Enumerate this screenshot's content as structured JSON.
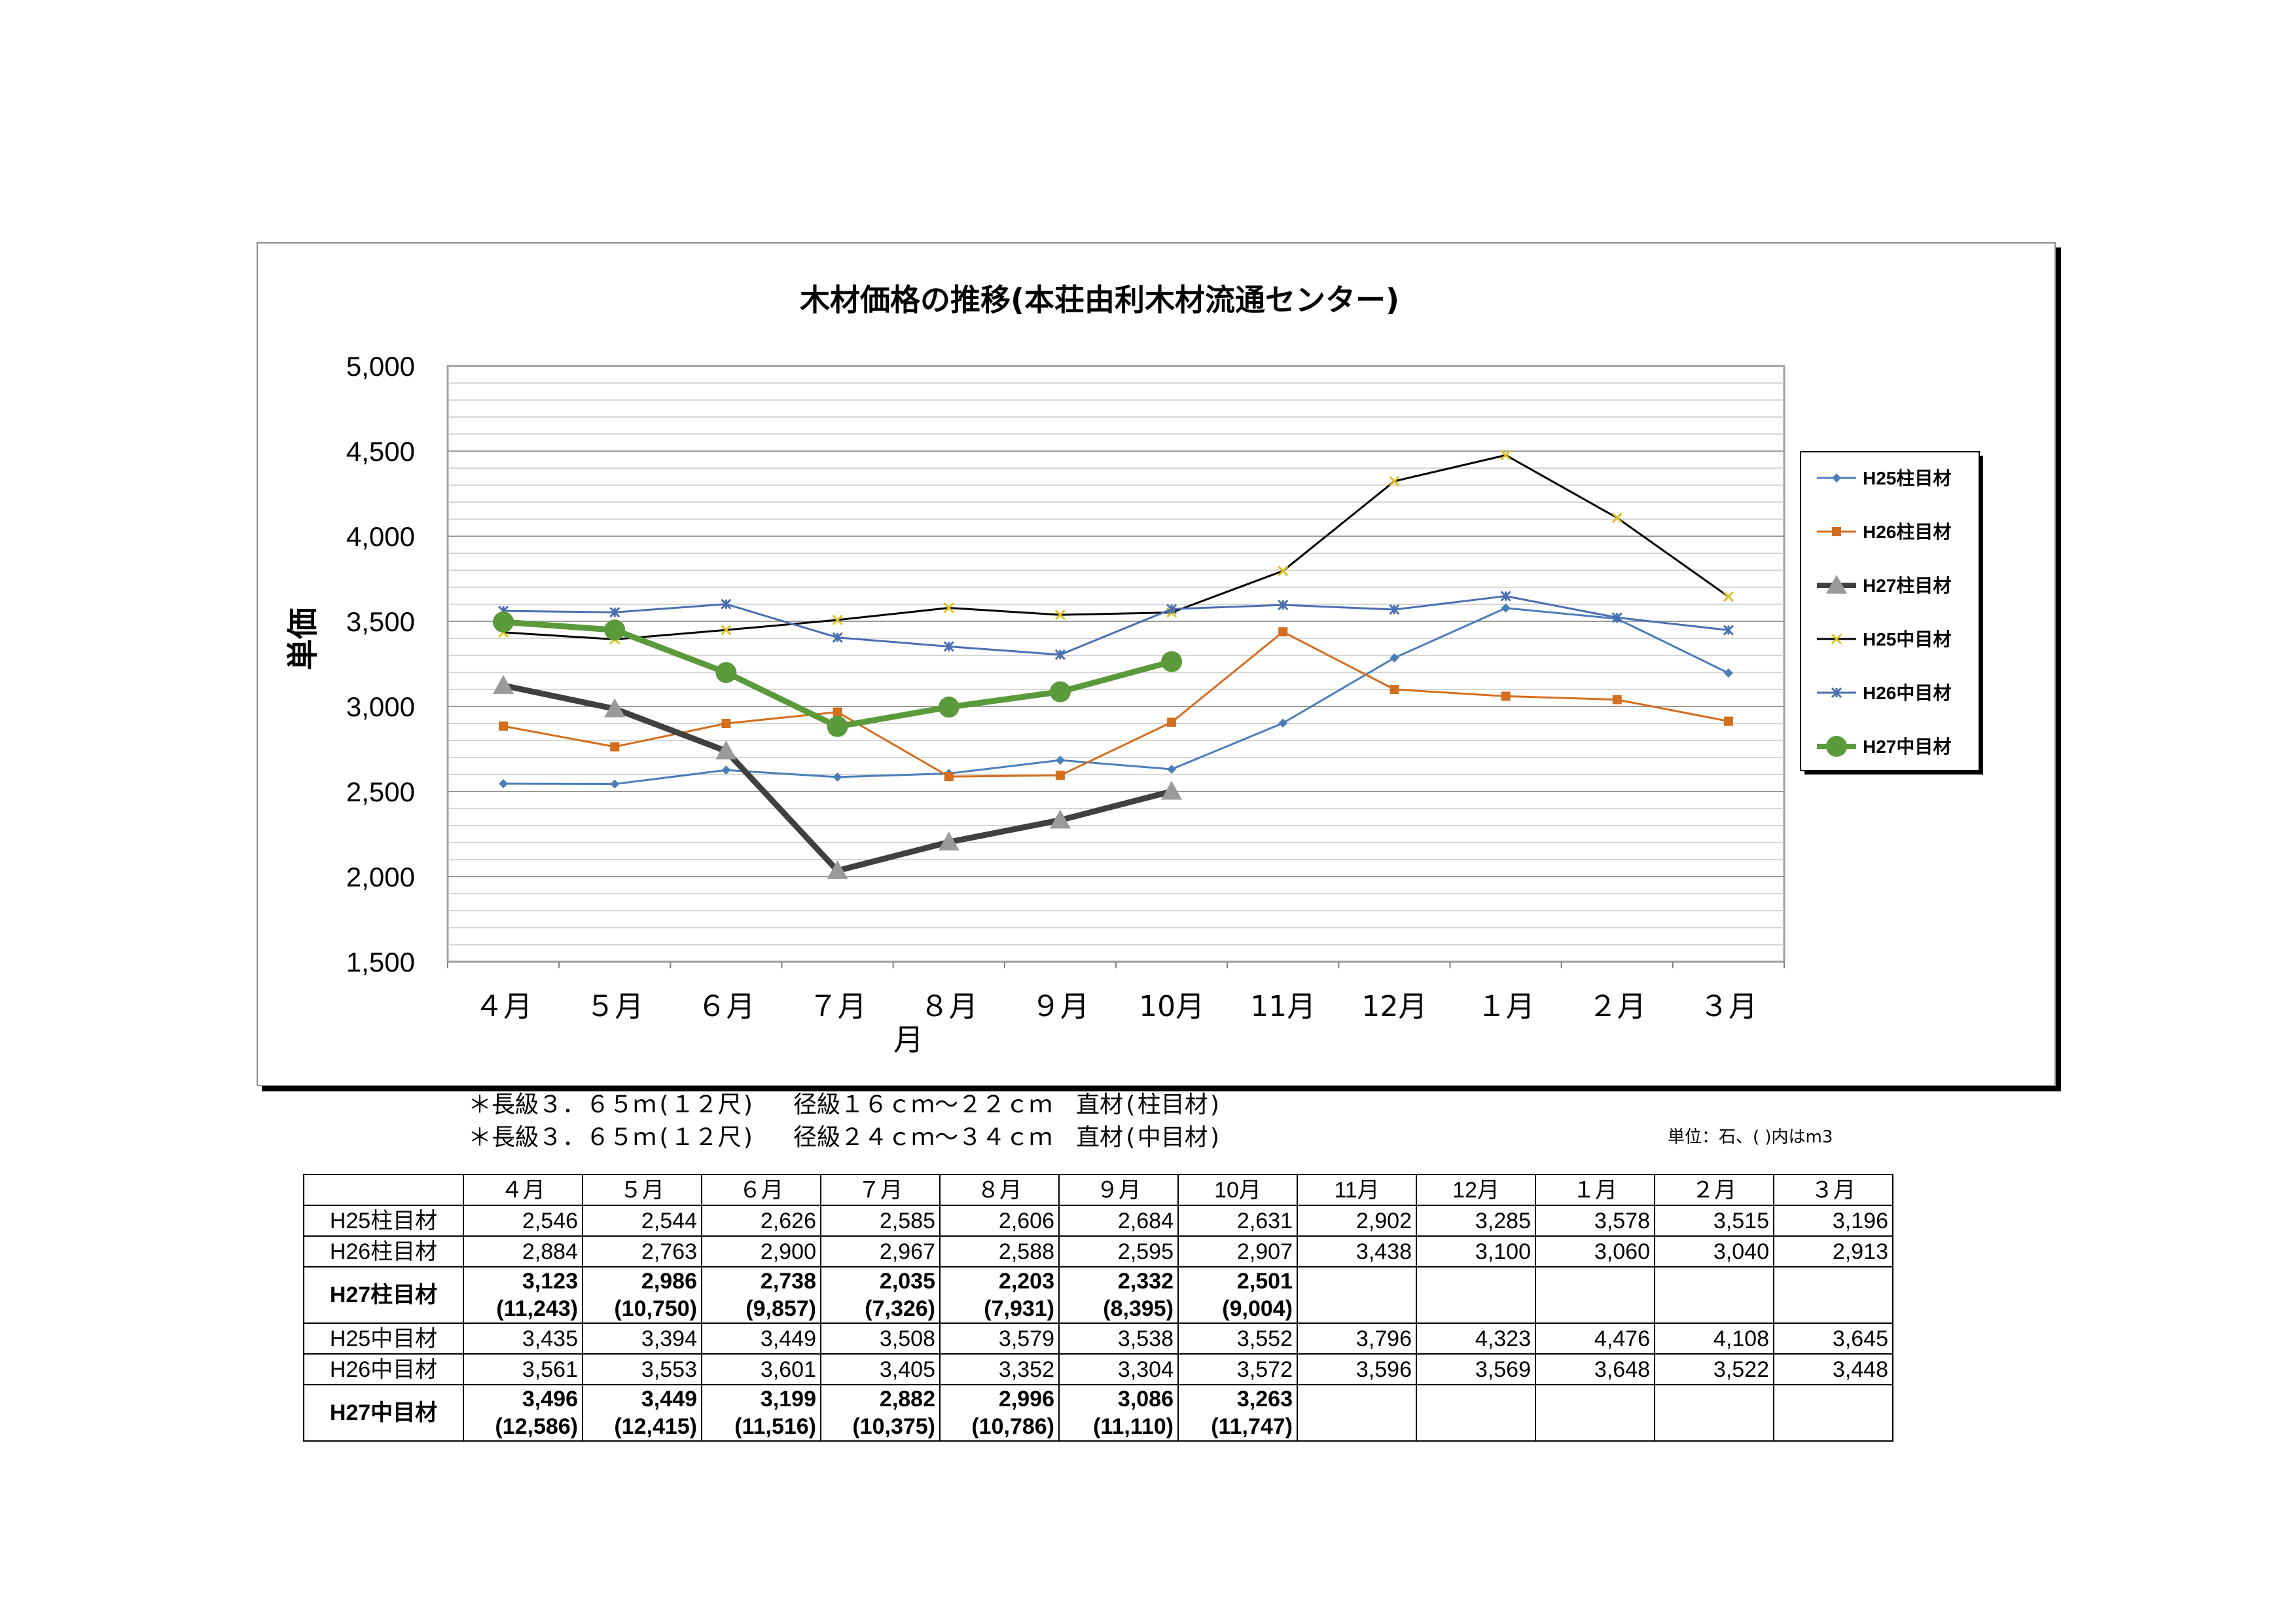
{
  "chart_data": {
    "type": "line",
    "title": "木材価格の推移(本荘由利木材流通センター)",
    "xlabel": "月",
    "ylabel": "単価",
    "ylim": [
      1500,
      5000
    ],
    "yticks": [
      "1,500",
      "2,000",
      "2,500",
      "3,000",
      "3,500",
      "4,000",
      "4,500",
      "5,000"
    ],
    "ytick_values": [
      1500,
      2000,
      2500,
      3000,
      3500,
      4000,
      4500,
      5000
    ],
    "grid": true,
    "legend_position": "right",
    "categories": [
      "４月",
      "５月",
      "６月",
      "７月",
      "８月",
      "９月",
      "10月",
      "11月",
      "12月",
      "１月",
      "２月",
      "３月"
    ],
    "series": [
      {
        "name": "H25柱目材",
        "color": "#4a7ebb",
        "marker": "diamond",
        "width": 3,
        "values": [
          2546,
          2544,
          2626,
          2585,
          2606,
          2684,
          2631,
          2902,
          3285,
          3578,
          3515,
          3196
        ]
      },
      {
        "name": "H26柱目材",
        "color": "#d46e1f",
        "marker": "square",
        "width": 3,
        "values": [
          2884,
          2763,
          2900,
          2967,
          2588,
          2595,
          2907,
          3438,
          3100,
          3060,
          3040,
          2913
        ]
      },
      {
        "name": "H27柱目材",
        "color": "#404040",
        "marker": "triangle",
        "width": 9,
        "values": [
          3123,
          2986,
          2738,
          2035,
          2203,
          2332,
          2501,
          null,
          null,
          null,
          null,
          null
        ]
      },
      {
        "name": "H25中目材",
        "color": "#000000",
        "marker": "cross",
        "width": 3,
        "values": [
          3435,
          3394,
          3449,
          3508,
          3579,
          3538,
          3552,
          3796,
          4323,
          4476,
          4108,
          3645
        ]
      },
      {
        "name": "H26中目材",
        "color": "#4a6fb0",
        "marker": "star",
        "width": 3,
        "values": [
          3561,
          3553,
          3601,
          3405,
          3352,
          3304,
          3572,
          3596,
          3569,
          3648,
          3522,
          3448
        ]
      },
      {
        "name": "H27中目材",
        "color": "#5a9a3a",
        "marker": "circle",
        "width": 9,
        "values": [
          3496,
          3449,
          3199,
          2882,
          2996,
          3086,
          3263,
          null,
          null,
          null,
          null,
          null
        ]
      }
    ]
  },
  "notes": [
    "＊長級３．６５ｍ(１２尺)　 径級１６ｃｍ～２２ｃｍ　直材(柱目材)",
    "＊長級３．６５ｍ(１２尺)　 径級２４ｃｍ～３４ｃｍ　直材(中目材)"
  ],
  "unit_note": "単位：石、( )内はm3",
  "table": {
    "headers": [
      "",
      "４月",
      "５月",
      "６月",
      "７月",
      "８月",
      "９月",
      "10月",
      "11月",
      "12月",
      "１月",
      "２月",
      "３月"
    ],
    "rows": [
      {
        "label": "H25柱目材",
        "bold": false,
        "values": [
          "2,546",
          "2,544",
          "2,626",
          "2,585",
          "2,606",
          "2,684",
          "2,631",
          "2,902",
          "3,285",
          "3,578",
          "3,515",
          "3,196"
        ],
        "volumes": []
      },
      {
        "label": "H26柱目材",
        "bold": false,
        "values": [
          "2,884",
          "2,763",
          "2,900",
          "2,967",
          "2,588",
          "2,595",
          "2,907",
          "3,438",
          "3,100",
          "3,060",
          "3,040",
          "2,913"
        ],
        "volumes": []
      },
      {
        "label": "H27柱目材",
        "bold": true,
        "values": [
          "3,123",
          "2,986",
          "2,738",
          "2,035",
          "2,203",
          "2,332",
          "2,501",
          "",
          "",
          "",
          "",
          ""
        ],
        "volumes": [
          "(11,243)",
          "(10,750)",
          "(9,857)",
          "(7,326)",
          "(7,931)",
          "(8,395)",
          "(9,004)",
          "",
          "",
          "",
          "",
          ""
        ]
      },
      {
        "label": "H25中目材",
        "bold": false,
        "values": [
          "3,435",
          "3,394",
          "3,449",
          "3,508",
          "3,579",
          "3,538",
          "3,552",
          "3,796",
          "4,323",
          "4,476",
          "4,108",
          "3,645"
        ],
        "volumes": []
      },
      {
        "label": "H26中目材",
        "bold": false,
        "values": [
          "3,561",
          "3,553",
          "3,601",
          "3,405",
          "3,352",
          "3,304",
          "3,572",
          "3,596",
          "3,569",
          "3,648",
          "3,522",
          "3,448"
        ],
        "volumes": []
      },
      {
        "label": "H27中目材",
        "bold": true,
        "values": [
          "3,496",
          "3,449",
          "3,199",
          "2,882",
          "2,996",
          "3,086",
          "3,263",
          "",
          "",
          "",
          "",
          ""
        ],
        "volumes": [
          "(12,586)",
          "(12,415)",
          "(11,516)",
          "(10,375)",
          "(10,786)",
          "(11,110)",
          "(11,747)",
          "",
          "",
          "",
          "",
          ""
        ]
      }
    ]
  }
}
